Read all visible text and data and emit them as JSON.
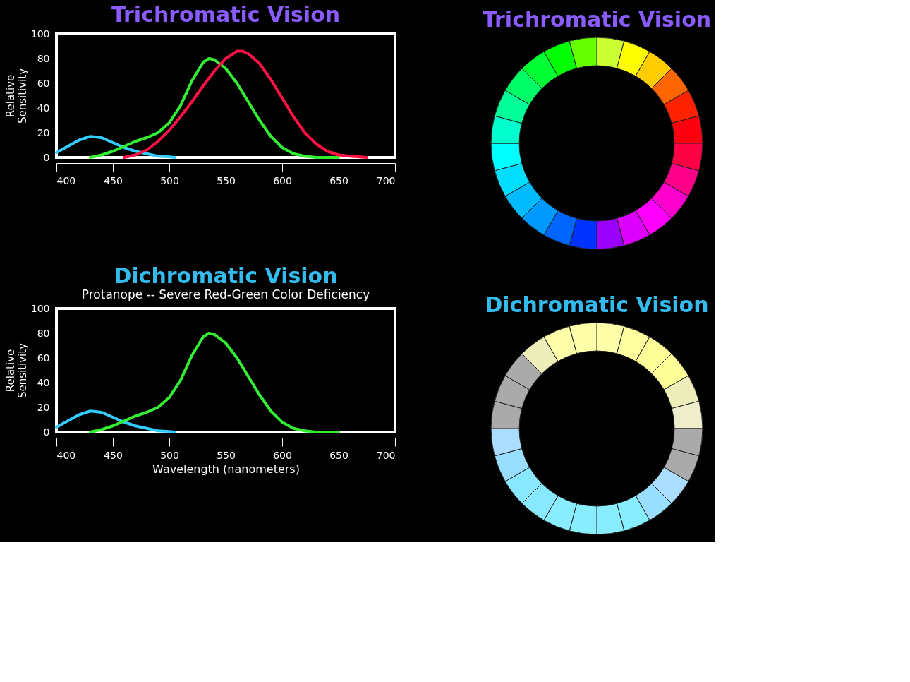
{
  "chart_data": [
    {
      "type": "line",
      "title": "Trichromatic Vision",
      "ylabel": "Relative Sensitivity",
      "xlim": [
        400,
        700
      ],
      "xticks": [
        400,
        450,
        500,
        550,
        600,
        650,
        700
      ],
      "ylim": [
        0,
        100
      ],
      "yticks": [
        0,
        20,
        40,
        60,
        80,
        100
      ],
      "grid": false,
      "series": [
        {
          "color": "#33ccff",
          "x": [
            400,
            410,
            420,
            430,
            440,
            450,
            460,
            470,
            480,
            490,
            500,
            505
          ],
          "values": [
            4,
            9,
            14,
            17,
            16,
            12,
            8,
            5,
            3,
            1,
            0.5,
            0
          ]
        },
        {
          "color": "#33ee33",
          "x": [
            430,
            440,
            450,
            460,
            470,
            480,
            490,
            500,
            510,
            520,
            530,
            535,
            540,
            550,
            560,
            570,
            580,
            590,
            600,
            610,
            620,
            630,
            650
          ],
          "values": [
            0,
            2,
            5,
            9,
            13,
            16,
            20,
            28,
            42,
            62,
            77,
            80,
            79,
            72,
            60,
            45,
            30,
            17,
            8,
            3,
            1,
            0,
            0
          ]
        },
        {
          "color": "#ff1144",
          "x": [
            460,
            470,
            480,
            490,
            500,
            510,
            520,
            530,
            540,
            550,
            560,
            565,
            570,
            580,
            590,
            600,
            610,
            620,
            630,
            640,
            650,
            660,
            675
          ],
          "values": [
            0,
            2,
            6,
            13,
            22,
            33,
            45,
            58,
            70,
            80,
            86,
            86,
            84,
            76,
            63,
            48,
            33,
            20,
            11,
            5,
            2,
            1,
            0
          ]
        }
      ]
    },
    {
      "type": "donut",
      "title": "Trichromatic Vision",
      "categories": [
        null,
        null,
        null,
        null,
        null,
        null,
        null,
        null,
        null,
        null,
        null,
        null,
        null,
        null,
        null,
        null,
        null,
        null,
        null,
        null,
        null,
        null,
        null,
        null
      ],
      "values": [
        4.1667,
        4.1667,
        4.1667,
        4.1667,
        4.1667,
        4.1667,
        4.1667,
        4.1667,
        4.1667,
        4.1667,
        4.1667,
        4.1667,
        4.1667,
        4.1667,
        4.1667,
        4.1667,
        4.1667,
        4.1667,
        4.1667,
        4.1667,
        4.1667,
        4.1667,
        4.1667,
        4.1667
      ],
      "colors": [
        "#ccff33",
        "#ffff00",
        "#ffcc00",
        "#ff6600",
        "#ff2200",
        "#ff0011",
        "#ff0044",
        "#ff0088",
        "#ff00cc",
        "#ff00ff",
        "#dd00ff",
        "#9900ff",
        "#0033ff",
        "#0066ff",
        "#0099ff",
        "#00bbff",
        "#00ddff",
        "#00ffff",
        "#00ffcc",
        "#00ff99",
        "#00ff66",
        "#00ff33",
        "#00ff00",
        "#66ff00"
      ]
    },
    {
      "type": "line",
      "title": "Dichromatic Vision",
      "subtitle": "Protanope -- Severe Red-Green Color Deficiency",
      "xlabel": "Wavelength (nanometers)",
      "ylabel": "Relative Sensitivity",
      "xlim": [
        400,
        700
      ],
      "xticks": [
        400,
        450,
        500,
        550,
        600,
        650,
        700
      ],
      "ylim": [
        0,
        100
      ],
      "yticks": [
        0,
        20,
        40,
        60,
        80,
        100
      ],
      "grid": false,
      "series": [
        {
          "color": "#33ccff",
          "x": [
            400,
            410,
            420,
            430,
            440,
            450,
            460,
            470,
            480,
            490,
            500,
            505
          ],
          "values": [
            4,
            9,
            14,
            17,
            16,
            12,
            8,
            5,
            3,
            1,
            0.5,
            0
          ]
        },
        {
          "color": "#33ee33",
          "x": [
            430,
            440,
            450,
            460,
            470,
            480,
            490,
            500,
            510,
            520,
            530,
            535,
            540,
            550,
            560,
            570,
            580,
            590,
            600,
            610,
            620,
            630,
            650
          ],
          "values": [
            0,
            2,
            5,
            9,
            13,
            16,
            20,
            28,
            42,
            62,
            77,
            80,
            79,
            72,
            60,
            45,
            30,
            17,
            8,
            3,
            1,
            0,
            0
          ]
        }
      ]
    },
    {
      "type": "donut",
      "title": "Dichromatic Vision",
      "categories": [
        null,
        null,
        null,
        null,
        null,
        null,
        null,
        null,
        null,
        null,
        null,
        null,
        null,
        null,
        null,
        null,
        null,
        null,
        null,
        null,
        null,
        null,
        null,
        null
      ],
      "values": [
        4.1667,
        4.1667,
        4.1667,
        4.1667,
        4.1667,
        4.1667,
        4.1667,
        4.1667,
        4.1667,
        4.1667,
        4.1667,
        4.1667,
        4.1667,
        4.1667,
        4.1667,
        4.1667,
        4.1667,
        4.1667,
        4.1667,
        4.1667,
        4.1667,
        4.1667,
        4.1667,
        4.1667
      ],
      "colors": [
        "#ffffaa",
        "#ffffa0",
        "#ffff99",
        "#ffff99",
        "#eeeebb",
        "#eeeecc",
        "#aaaaaa",
        "#aaaaaa",
        "#aaddff",
        "#99ddff",
        "#88eeff",
        "#88eeff",
        "#88eeff",
        "#88eeff",
        "#88e8ff",
        "#88e8ff",
        "#99ddff",
        "#aaddff",
        "#aaaaaa",
        "#aaaaaa",
        "#aaaaaa",
        "#eeeebb",
        "#ffffaa",
        "#ffffaa"
      ]
    }
  ]
}
